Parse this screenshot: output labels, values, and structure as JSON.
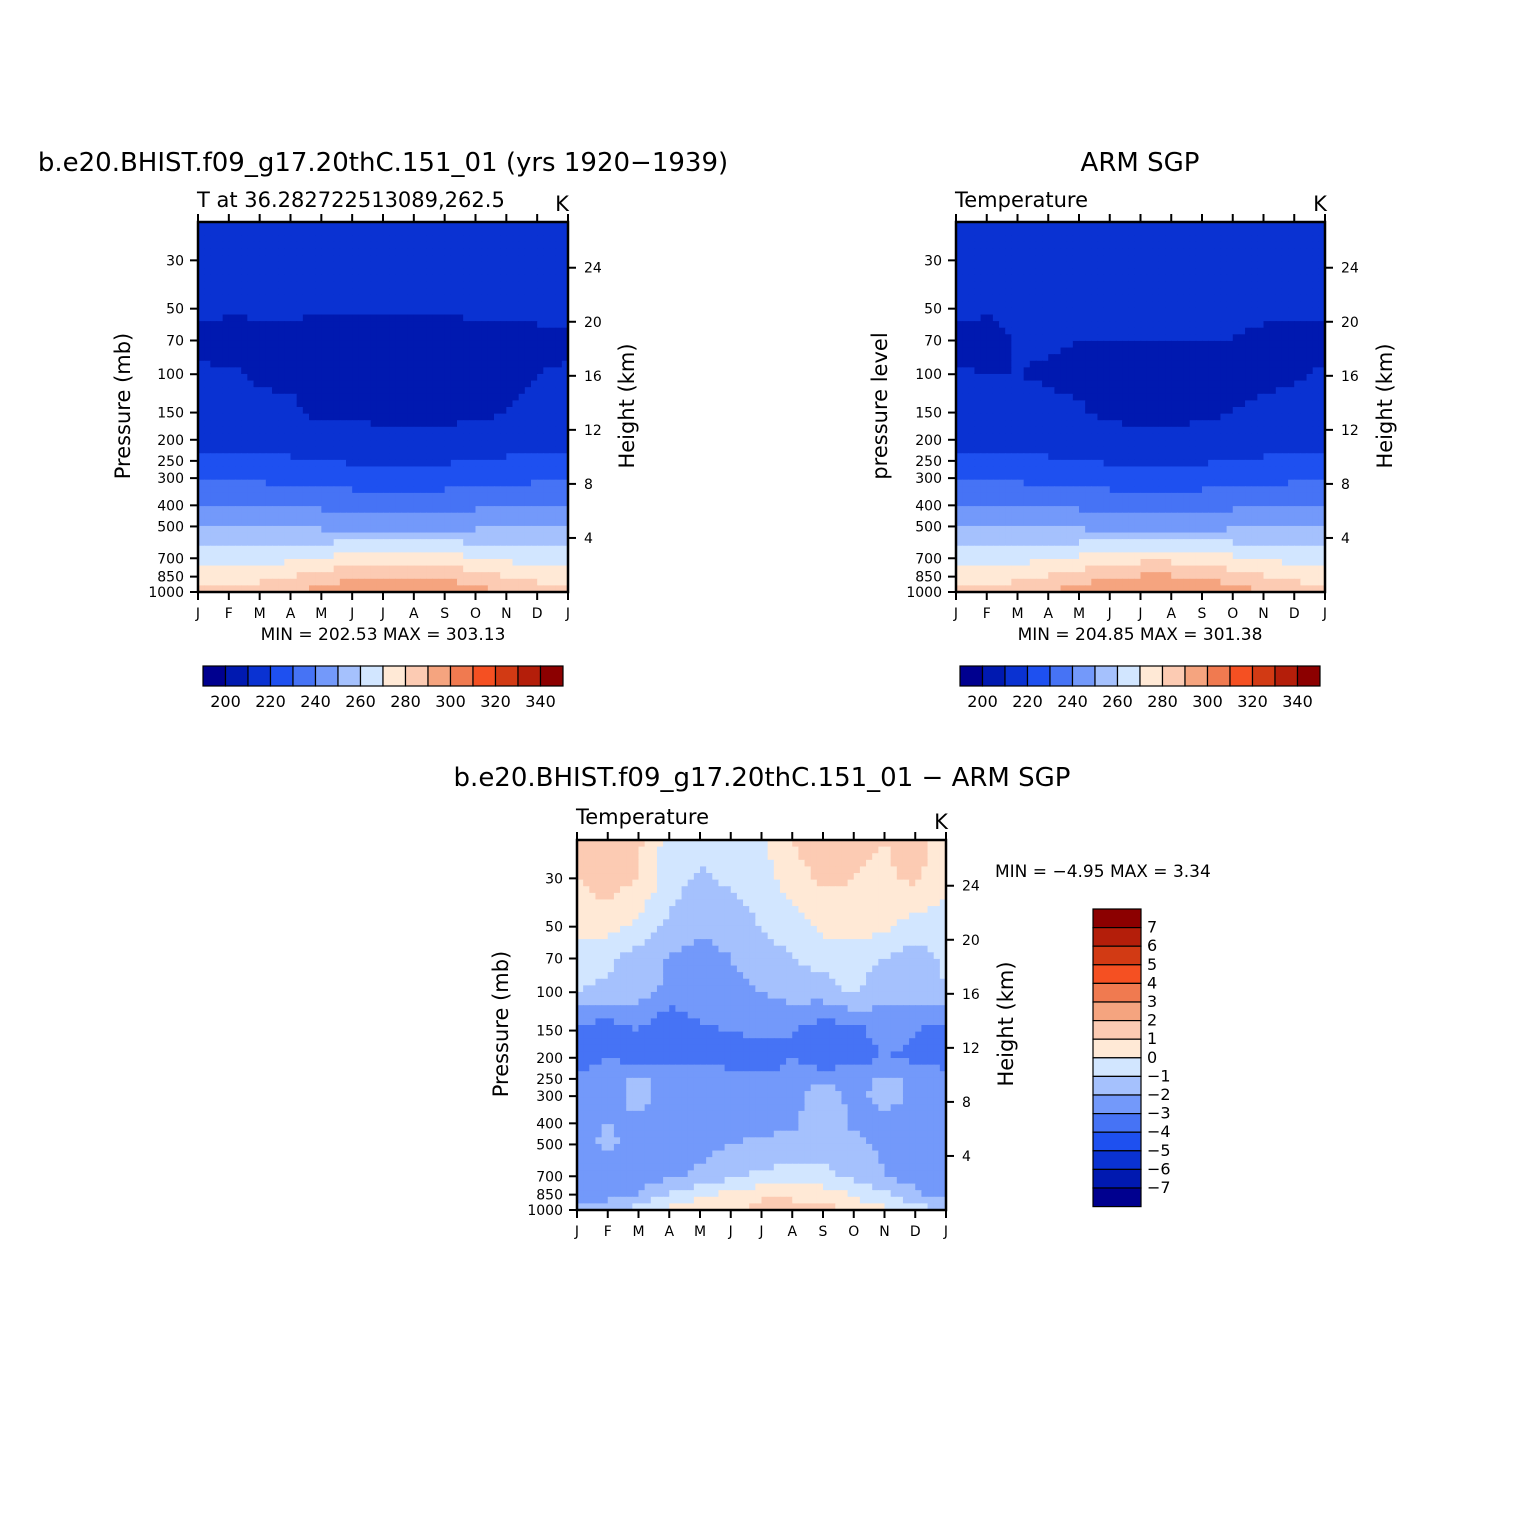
{
  "colors": {
    "abs_scale": [
      "#00008f",
      "#0019b0",
      "#0a32d2",
      "#1e50f0",
      "#4673f5",
      "#7399fa",
      "#a5c1fd",
      "#d2e6ff",
      "#ffe9d6",
      "#fccbb3",
      "#f5a47f",
      "#f07a50",
      "#f55022",
      "#d23a14",
      "#b41e0a",
      "#8c0000"
    ],
    "diff_scale": [
      "#00008f",
      "#0019b0",
      "#0a32d2",
      "#1e50f0",
      "#4673f5",
      "#7399fa",
      "#a5c1fd",
      "#d2e6ff",
      "#ffe9d6",
      "#fccbb3",
      "#f5a47f",
      "#f07a50",
      "#f55022",
      "#d23a14",
      "#b41e0a",
      "#8c0000"
    ]
  },
  "chart_data": [
    {
      "type": "heatmap",
      "title": "b.e20.BHIST.f09_g17.20thC.151_01 (yrs 1920−1939)",
      "subtitle_left": "T at 36.282722513089,262.5",
      "units": "K",
      "ylabel": "Pressure (mb)",
      "ylabel_right": "Height (km)",
      "x_ticks": [
        "J",
        "F",
        "M",
        "A",
        "M",
        "J",
        "J",
        "A",
        "S",
        "O",
        "N",
        "D",
        "J"
      ],
      "y_ticks": [
        30,
        50,
        70,
        100,
        150,
        200,
        250,
        300,
        400,
        500,
        700,
        850,
        1000
      ],
      "y_right_ticks": [
        24,
        20,
        16,
        12,
        8,
        4
      ],
      "ylim": [
        20,
        1000
      ],
      "y_scale": "log",
      "stats": "MIN = 202.53 MAX = 303.13",
      "colorbar_labels": [
        "200",
        "220",
        "240",
        "260",
        "280",
        "300",
        "320",
        "340"
      ],
      "x": [
        0,
        1,
        2,
        3,
        4,
        5,
        6,
        7,
        8,
        9,
        10,
        11,
        12
      ],
      "y": [
        20,
        30,
        50,
        70,
        100,
        150,
        200,
        250,
        300,
        400,
        500,
        700,
        850,
        1000
      ],
      "z": [
        [
          218,
          217,
          216,
          215,
          213,
          212,
          211,
          211,
          212,
          214,
          216,
          217,
          218
        ],
        [
          217,
          216,
          215,
          214,
          213,
          212,
          212,
          212,
          213,
          214,
          215,
          216,
          217
        ],
        [
          212,
          211,
          211,
          211,
          211,
          211,
          211,
          211,
          211,
          211,
          211,
          212,
          212
        ],
        [
          208,
          207,
          208,
          208,
          207,
          207,
          207,
          207,
          207,
          208,
          208,
          208,
          208
        ],
        [
          211,
          211,
          209,
          208,
          207,
          207,
          207,
          207,
          207,
          207,
          208,
          210,
          211
        ],
        [
          213,
          213,
          212,
          212,
          207,
          207,
          207,
          207,
          207,
          207,
          210,
          212,
          213
        ],
        [
          217,
          217,
          216,
          216,
          215,
          215,
          214,
          214,
          214,
          215,
          216,
          217,
          217
        ],
        [
          222,
          222,
          222,
          221,
          220,
          219,
          219,
          219,
          219,
          220,
          221,
          222,
          222
        ],
        [
          228,
          228,
          228,
          227,
          226,
          225,
          224,
          224,
          225,
          226,
          227,
          228,
          228
        ],
        [
          241,
          241,
          240,
          239,
          238,
          237,
          236,
          236,
          237,
          238,
          239,
          240,
          241
        ],
        [
          251,
          251,
          250,
          249,
          248,
          247,
          246,
          246,
          247,
          248,
          249,
          250,
          251
        ],
        [
          264,
          264,
          265,
          268,
          271,
          274,
          276,
          276,
          274,
          271,
          268,
          265,
          264
        ],
        [
          275,
          275,
          277,
          280,
          284,
          288,
          290,
          290,
          288,
          284,
          280,
          277,
          275
        ],
        [
          283,
          283,
          285,
          289,
          294,
          299,
          302,
          302,
          299,
          294,
          289,
          285,
          283
        ]
      ]
    },
    {
      "type": "heatmap",
      "title": "ARM SGP",
      "subtitle_left": "Temperature",
      "units": "K",
      "ylabel": "pressure level",
      "ylabel_right": "Height (km)",
      "x_ticks": [
        "J",
        "F",
        "M",
        "A",
        "M",
        "J",
        "J",
        "A",
        "S",
        "O",
        "N",
        "D",
        "J"
      ],
      "y_ticks": [
        30,
        50,
        70,
        100,
        150,
        200,
        250,
        300,
        400,
        500,
        700,
        850,
        1000
      ],
      "y_right_ticks": [
        24,
        20,
        16,
        12,
        8,
        4
      ],
      "ylim": [
        20,
        1000
      ],
      "y_scale": "log",
      "stats": "MIN = 204.85 MAX = 301.38",
      "colorbar_labels": [
        "200",
        "220",
        "240",
        "260",
        "280",
        "300",
        "320",
        "340"
      ],
      "x": [
        0,
        1,
        2,
        3,
        4,
        5,
        6,
        7,
        8,
        9,
        10,
        11,
        12
      ],
      "y": [
        20,
        30,
        50,
        70,
        100,
        150,
        200,
        250,
        300,
        400,
        500,
        700,
        850,
        1000
      ],
      "z": [
        [
          218,
          217,
          216,
          215,
          213,
          212,
          211,
          211,
          212,
          214,
          216,
          217,
          218
        ],
        [
          217,
          216,
          215,
          214,
          213,
          212,
          212,
          212,
          213,
          214,
          215,
          216,
          217
        ],
        [
          212,
          211,
          211,
          211,
          211,
          211,
          211,
          211,
          211,
          211,
          211,
          212,
          212
        ],
        [
          208,
          207,
          211,
          211,
          210,
          210,
          210,
          210,
          210,
          210,
          209,
          207,
          208
        ],
        [
          211,
          210,
          210,
          209,
          208,
          207,
          207,
          207,
          207,
          207,
          208,
          209,
          211
        ],
        [
          213,
          213,
          213,
          212,
          211,
          208,
          207,
          207,
          208,
          210,
          212,
          213,
          213
        ],
        [
          217,
          217,
          217,
          216,
          215,
          214,
          213,
          213,
          214,
          215,
          216,
          217,
          217
        ],
        [
          222,
          222,
          222,
          221,
          220,
          219,
          218,
          218,
          219,
          220,
          221,
          222,
          222
        ],
        [
          228,
          228,
          228,
          227,
          226,
          225,
          224,
          224,
          225,
          226,
          227,
          228,
          228
        ],
        [
          241,
          241,
          240,
          239,
          238,
          237,
          236,
          236,
          237,
          238,
          239,
          240,
          241
        ],
        [
          251,
          251,
          250,
          249,
          248,
          247,
          246,
          246,
          247,
          248,
          249,
          250,
          251
        ],
        [
          264,
          264,
          266,
          269,
          272,
          275,
          277,
          277,
          275,
          272,
          269,
          266,
          264
        ],
        [
          275,
          275,
          278,
          281,
          285,
          289,
          291,
          291,
          289,
          285,
          281,
          278,
          275
        ],
        [
          283,
          283,
          286,
          290,
          294,
          298,
          300,
          300,
          298,
          294,
          290,
          286,
          283
        ]
      ]
    },
    {
      "type": "heatmap",
      "title": "b.e20.BHIST.f09_g17.20thC.151_01 − ARM SGP",
      "subtitle_left": "Temperature",
      "units": "K",
      "ylabel": "Pressure (mb)",
      "ylabel_right": "Height (km)",
      "x_ticks": [
        "J",
        "F",
        "M",
        "A",
        "M",
        "J",
        "J",
        "A",
        "S",
        "O",
        "N",
        "D",
        "J"
      ],
      "y_ticks": [
        30,
        50,
        70,
        100,
        150,
        200,
        250,
        300,
        400,
        500,
        700,
        850,
        1000
      ],
      "y_right_ticks": [
        24,
        20,
        16,
        12,
        8,
        4
      ],
      "ylim": [
        20,
        1000
      ],
      "y_scale": "log",
      "stats": "MIN =   −4.95  MAX =     3.34",
      "colorbar_labels": [
        "7",
        "6",
        "5",
        "4",
        "3",
        "2",
        "1",
        "0",
        "−1",
        "−2",
        "−3",
        "−4",
        "−5",
        "−6",
        "−7"
      ],
      "x": [
        0,
        1,
        2,
        3,
        4,
        5,
        6,
        7,
        8,
        9,
        10,
        11,
        12
      ],
      "y": [
        20,
        30,
        50,
        70,
        100,
        150,
        200,
        250,
        300,
        400,
        500,
        700,
        850,
        1000
      ],
      "z": [
        [
          1.2,
          1.8,
          1.2,
          -0.5,
          -0.5,
          -0.3,
          -0.2,
          1.0,
          1.8,
          1.2,
          1.0,
          1.5,
          0.5
        ],
        [
          1.0,
          1.5,
          1.0,
          -0.5,
          -1.2,
          -0.8,
          -0.4,
          0.5,
          1.2,
          1.0,
          0.8,
          1.2,
          0.3
        ],
        [
          0.5,
          0.4,
          -0.3,
          -1.2,
          -1.8,
          -1.5,
          -1.0,
          -0.5,
          0.3,
          0.5,
          0.2,
          -0.5,
          -0.5
        ],
        [
          -0.6,
          -0.8,
          -1.5,
          -2.1,
          -2.5,
          -2.0,
          -1.5,
          -1.0,
          -0.6,
          -0.5,
          -1.0,
          -1.5,
          -0.8
        ],
        [
          -1.0,
          -1.2,
          -1.6,
          -2.2,
          -2.4,
          -2.3,
          -2.0,
          -1.6,
          -1.5,
          -0.8,
          -1.8,
          -1.6,
          -1.0
        ],
        [
          -3.5,
          -3.6,
          -3.0,
          -4.2,
          -3.1,
          -3.0,
          -2.8,
          -3.0,
          -3.6,
          -3.4,
          -2.5,
          -3.0,
          -3.5
        ],
        [
          -3.8,
          -3.0,
          -3.6,
          -3.2,
          -3.2,
          -3.3,
          -3.6,
          -3.0,
          -3.7,
          -3.5,
          -3.0,
          -3.2,
          -3.5
        ],
        [
          -2.5,
          -2.2,
          -1.8,
          -2.3,
          -2.6,
          -2.7,
          -2.8,
          -2.6,
          -2.3,
          -2.4,
          -1.8,
          -2.2,
          -2.6
        ],
        [
          -2.6,
          -2.5,
          -1.6,
          -2.4,
          -2.7,
          -2.8,
          -2.7,
          -2.5,
          -1.2,
          -2.4,
          -1.5,
          -2.3,
          -2.7
        ],
        [
          -2.2,
          -2.0,
          -2.2,
          -2.5,
          -2.6,
          -2.4,
          -2.3,
          -2.2,
          -1.3,
          -2.2,
          -2.4,
          -2.5,
          -2.6
        ],
        [
          -2.4,
          -1.8,
          -2.4,
          -2.2,
          -2.3,
          -2.0,
          -1.8,
          -1.6,
          -1.3,
          -1.7,
          -2.2,
          -2.4,
          -2.6
        ],
        [
          -2.8,
          -2.6,
          -2.5,
          -2.2,
          -1.8,
          -1.2,
          -0.8,
          -0.6,
          -0.7,
          -1.3,
          -2.0,
          -2.4,
          -2.9
        ],
        [
          -2.8,
          -2.5,
          -2.0,
          -0.8,
          -0.2,
          0.3,
          0.8,
          0.9,
          0.6,
          0.0,
          -0.8,
          -1.8,
          -2.6
        ],
        [
          -1.5,
          -1.2,
          -0.5,
          0.3,
          0.6,
          0.8,
          1.4,
          1.2,
          1.5,
          0.5,
          0.2,
          -0.4,
          -1.0
        ]
      ]
    }
  ]
}
